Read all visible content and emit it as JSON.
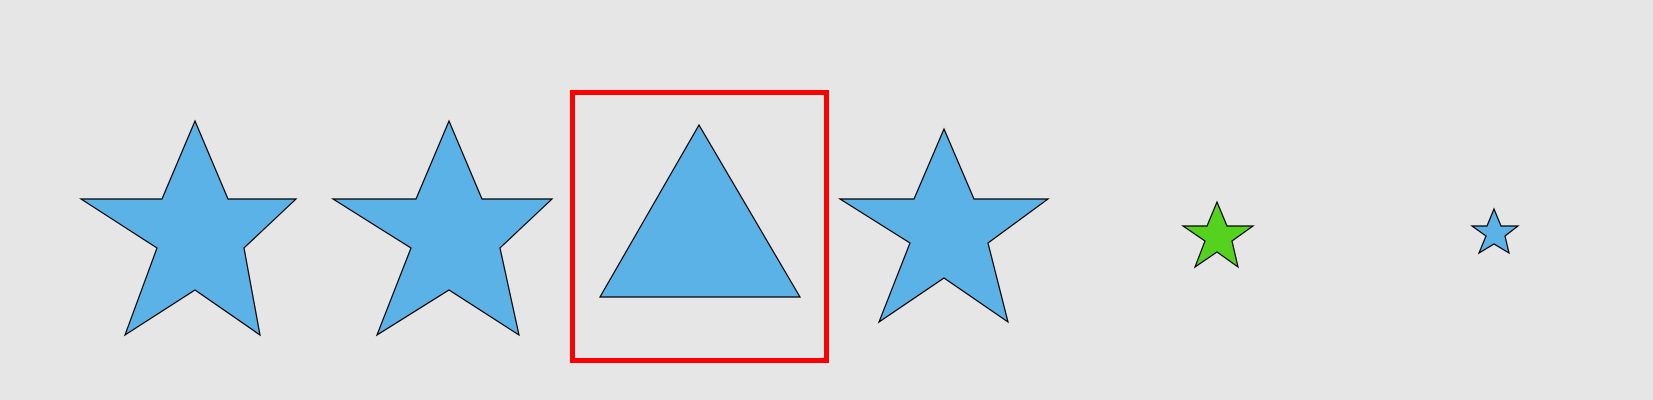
{
  "colors": {
    "background": "#e6e6e6",
    "shape_fill": "#5ab2e6",
    "accent_fill": "#55d21e",
    "outline": "#000000",
    "selection": "#ff0000"
  },
  "shapes": [
    {
      "name": "star-1",
      "kind": "star",
      "fill": "#5ab2e6"
    },
    {
      "name": "star-2",
      "kind": "star",
      "fill": "#5ab2e6"
    },
    {
      "name": "triangle",
      "kind": "triangle",
      "fill": "#5ab2e6",
      "selected": true
    },
    {
      "name": "star-3",
      "kind": "star",
      "fill": "#5ab2e6"
    },
    {
      "name": "star-green",
      "kind": "star",
      "fill": "#55d21e"
    },
    {
      "name": "star-small",
      "kind": "star",
      "fill": "#5ab2e6"
    }
  ]
}
